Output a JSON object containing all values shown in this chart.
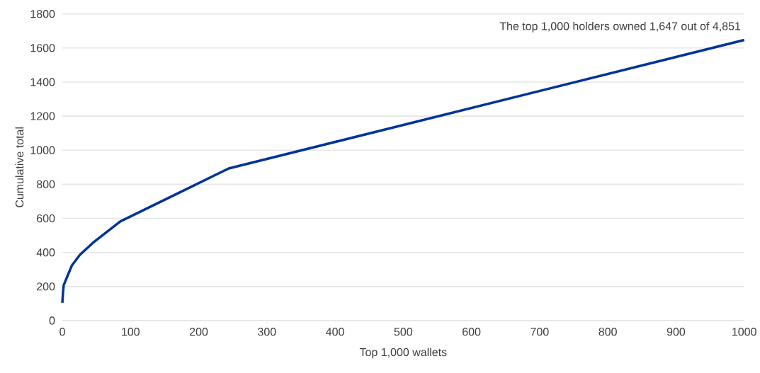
{
  "chart_data": {
    "type": "line",
    "xlabel": "Top 1,000 wallets",
    "ylabel": "Cumulative total",
    "annotations": [
      "The top 1,000 holders owned 1,647 out of 4,851"
    ],
    "x": [
      0,
      1,
      2,
      14,
      26,
      45,
      85,
      244,
      1000
    ],
    "series": [
      {
        "color": "#003399",
        "values": [
          104,
          166,
          208,
          324,
          387,
          457,
          582,
          893,
          1647
        ]
      }
    ],
    "xlim": [
      0,
      1000
    ],
    "ylim": [
      0,
      1800
    ],
    "xticks": [
      0,
      100,
      200,
      300,
      400,
      500,
      600,
      700,
      800,
      900,
      1000
    ],
    "yticks": [
      0,
      200,
      400,
      600,
      800,
      1000,
      1200,
      1400,
      1600,
      1800
    ],
    "grid": "y"
  }
}
